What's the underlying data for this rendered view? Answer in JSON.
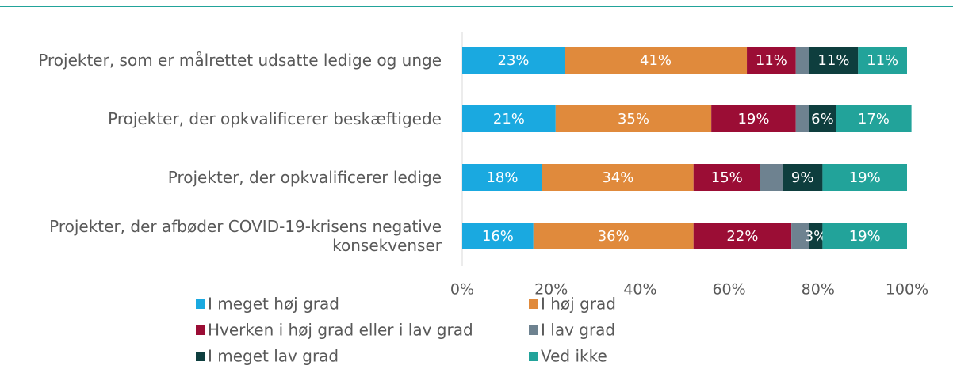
{
  "chart_data": {
    "type": "stacked_bar_horizontal",
    "categories": [
      "Projekter, som er målrettet udsatte ledige og unge",
      "Projekter, der opkvalificerer beskæftigede",
      "Projekter, der opkvalificerer ledige",
      "Projekter, der afbøder COVID-19-krisens negative konsekvenser"
    ],
    "series": [
      {
        "name": "I meget høj grad",
        "color": "#1aa9e0",
        "values": [
          23,
          21,
          18,
          16
        ],
        "value_labels": [
          "23%",
          "21%",
          "18%",
          "16%"
        ]
      },
      {
        "name": "I høj grad",
        "color": "#e08a3c",
        "values": [
          41,
          35,
          34,
          36
        ],
        "value_labels": [
          "41%",
          "35%",
          "34%",
          "36%"
        ]
      },
      {
        "name": "Hverken i høj grad eller i lav grad",
        "color": "#9b0d35",
        "values": [
          11,
          19,
          15,
          22
        ],
        "value_labels": [
          "11%",
          "19%",
          "15%",
          "22%"
        ]
      },
      {
        "name": "I lav grad",
        "color": "#6e8290",
        "values": [
          3,
          3,
          5,
          4
        ],
        "value_labels": [
          null,
          null,
          null,
          null
        ]
      },
      {
        "name": "I meget lav grad",
        "color": "#0e3e3e",
        "values": [
          11,
          6,
          9,
          3
        ],
        "value_labels": [
          "11%",
          "6%",
          "9%",
          "3%"
        ]
      },
      {
        "name": "Ved ikke",
        "color": "#22a39a",
        "values": [
          11,
          17,
          19,
          19
        ],
        "value_labels": [
          "11%",
          "17%",
          "19%",
          "19%"
        ]
      }
    ],
    "xlim": [
      0,
      100
    ],
    "xticks": [
      {
        "value": 0,
        "label": "0%"
      },
      {
        "value": 20,
        "label": "20%"
      },
      {
        "value": 40,
        "label": "40%"
      },
      {
        "value": 60,
        "label": "60%"
      },
      {
        "value": 80,
        "label": "80%"
      },
      {
        "value": 100,
        "label": "100%"
      }
    ],
    "legend": "bottom"
  }
}
